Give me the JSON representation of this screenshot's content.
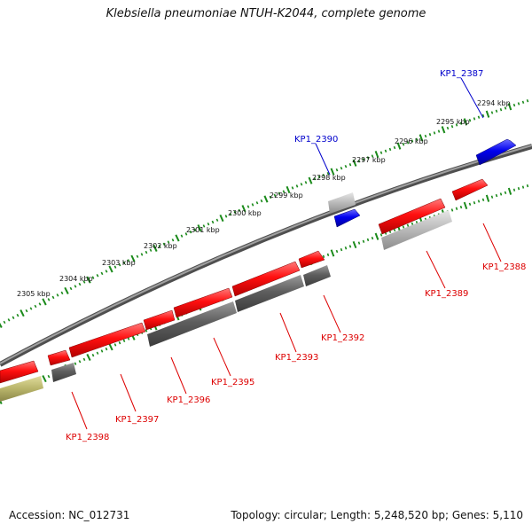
{
  "map": {
    "title": "Klebsiella pneumoniae NTUH-K2044, complete genome",
    "accession": "Accession: NC_012731",
    "summary": "Topology: circular; Length: 5,248,520 bp; Genes: 5,110",
    "colors": {
      "forward_gene": "#ff0000",
      "rna_gene": "#0000ee",
      "pseudo_gene": "#b8b46a",
      "backbone": "#808080",
      "tick": "#1a8a1a",
      "label_forward": "#dd0000",
      "label_rna": "#0000cc"
    },
    "scale": [
      {
        "label": "2294 kbp"
      },
      {
        "label": "2295 kbp"
      },
      {
        "label": "2296 kbp"
      },
      {
        "label": "2297 kbp"
      },
      {
        "label": "2298 kbp"
      },
      {
        "label": "2299 kbp"
      },
      {
        "label": "2300 kbp"
      },
      {
        "label": "2301 kbp"
      },
      {
        "label": "2302 kbp"
      },
      {
        "label": "2303 kbp"
      },
      {
        "label": "2304 kbp"
      },
      {
        "label": "2305 kbp"
      }
    ],
    "gene_labels": [
      {
        "label": "KP1_2387",
        "kind": "rna"
      },
      {
        "label": "KP1_2390",
        "kind": "rna"
      },
      {
        "label": "KP1_2388",
        "kind": "forward"
      },
      {
        "label": "KP1_2389",
        "kind": "forward"
      },
      {
        "label": "KP1_2392",
        "kind": "forward"
      },
      {
        "label": "KP1_2393",
        "kind": "forward"
      },
      {
        "label": "KP1_2395",
        "kind": "forward"
      },
      {
        "label": "KP1_2396",
        "kind": "forward"
      },
      {
        "label": "KP1_2397",
        "kind": "forward"
      },
      {
        "label": "KP1_2398",
        "kind": "forward"
      }
    ]
  }
}
